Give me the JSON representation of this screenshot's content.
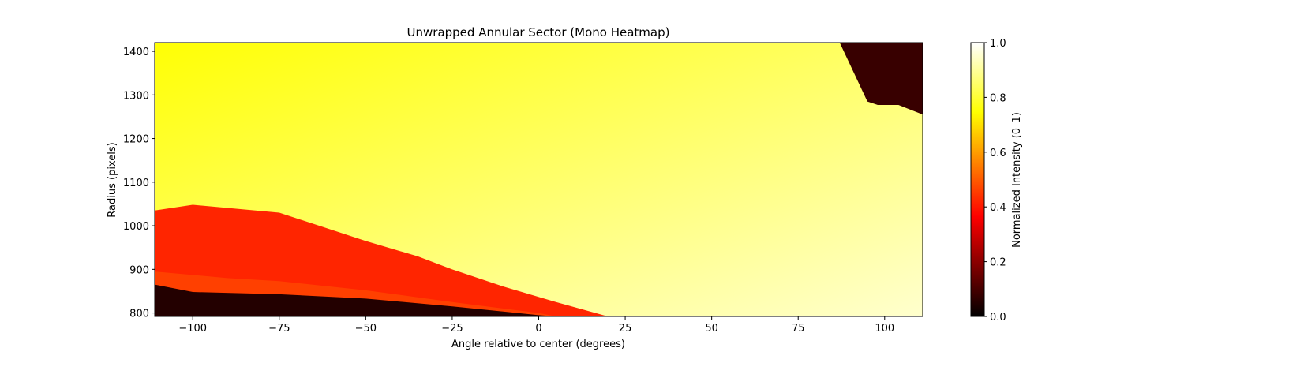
{
  "chart_data": {
    "type": "heatmap",
    "title": "Unwrapped Annular Sector (Mono Heatmap)",
    "xlabel": "Angle relative to center (degrees)",
    "ylabel": "Radius (pixels)",
    "xlim": [
      -111,
      111
    ],
    "ylim": [
      792,
      1420
    ],
    "xticks": [
      -100,
      -75,
      -50,
      -25,
      0,
      25,
      50,
      75,
      100
    ],
    "xtick_labels": [
      "−100",
      "−75",
      "−50",
      "−25",
      "0",
      "25",
      "50",
      "75",
      "100"
    ],
    "yticks": [
      800,
      900,
      1000,
      1100,
      1200,
      1300,
      1400
    ],
    "ytick_labels": [
      "800",
      "900",
      "1000",
      "1100",
      "1200",
      "1300",
      "1400"
    ],
    "colormap": "hot",
    "colormap_stops": [
      "#000000",
      "#ff0000",
      "#ffff00",
      "#ffffff"
    ],
    "colorbar": {
      "label": "Normalized Intensity (0–1)",
      "range": [
        0,
        1
      ],
      "ticks": [
        0.0,
        0.2,
        0.4,
        0.6,
        0.8,
        1.0
      ],
      "tick_labels": [
        "0.0",
        "0.2",
        "0.4",
        "0.6",
        "0.8",
        "1.0"
      ]
    },
    "regions": [
      {
        "name": "bright-field",
        "intensity_left": 0.75,
        "intensity_right": 0.95
      },
      {
        "name": "red-band",
        "intensity": 0.42,
        "upper_boundary": [
          [
            -111,
            1035
          ],
          [
            -100,
            1048
          ],
          [
            -75,
            1030
          ],
          [
            -50,
            965
          ],
          [
            -35,
            930
          ],
          [
            -25,
            900
          ],
          [
            -10,
            860
          ],
          [
            5,
            825
          ],
          [
            20,
            792
          ]
        ],
        "lower_boundary": [
          [
            -111,
            895
          ],
          [
            -90,
            880
          ],
          [
            -75,
            873
          ],
          [
            -50,
            852
          ],
          [
            -25,
            825
          ],
          [
            0,
            800
          ],
          [
            5,
            792
          ]
        ]
      },
      {
        "name": "dark-band",
        "intensity": 0.05,
        "upper_boundary": [
          [
            -111,
            865
          ],
          [
            -100,
            848
          ],
          [
            -75,
            843
          ],
          [
            -50,
            833
          ],
          [
            -25,
            815
          ],
          [
            0,
            795
          ],
          [
            5,
            792
          ]
        ]
      },
      {
        "name": "dark-corner",
        "intensity": 0.08,
        "boundary": [
          [
            87,
            1420
          ],
          [
            95,
            1285
          ],
          [
            98,
            1277
          ],
          [
            104,
            1277
          ],
          [
            111,
            1255
          ],
          [
            111,
            1420
          ]
        ]
      }
    ],
    "grid": false
  }
}
